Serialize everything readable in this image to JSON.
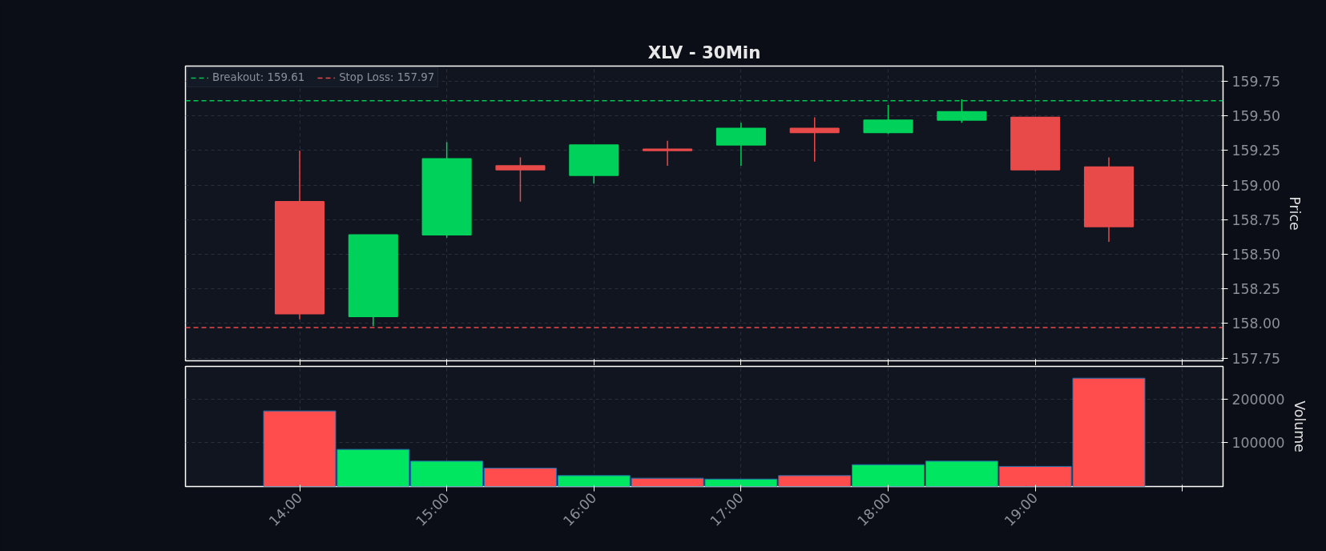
{
  "chart_data": [
    {
      "type": "candlestick",
      "title": "XLV - 30Min",
      "ylabel": "Price",
      "x": [
        14,
        14.5,
        15,
        15.5,
        16,
        16.5,
        17,
        17.5,
        18,
        18.5,
        19,
        19.5
      ],
      "ohlc": [
        [
          158.88,
          159.25,
          158.03,
          158.07
        ],
        [
          158.05,
          158.64,
          157.98,
          158.64
        ],
        [
          158.64,
          159.31,
          158.62,
          159.19
        ],
        [
          159.14,
          159.2,
          158.88,
          159.11
        ],
        [
          159.07,
          159.29,
          159.01,
          159.29
        ],
        [
          159.26,
          159.32,
          159.14,
          159.25
        ],
        [
          159.29,
          159.45,
          159.14,
          159.41
        ],
        [
          159.41,
          159.49,
          159.17,
          159.38
        ],
        [
          159.38,
          159.58,
          159.37,
          159.47
        ],
        [
          159.47,
          159.62,
          159.45,
          159.53
        ],
        [
          159.49,
          159.49,
          159.1,
          159.11
        ],
        [
          159.13,
          159.2,
          158.59,
          158.7
        ]
      ],
      "colors": [
        "#e84a4a",
        "#00d15a",
        "#00d15a",
        "#e84a4a",
        "#00d15a",
        "#e84a4a",
        "#00d15a",
        "#e84a4a",
        "#00d15a",
        "#00d15a",
        "#e84a4a",
        "#e84a4a"
      ],
      "xlim": [
        13.224,
        20.276
      ],
      "xticks": [
        14,
        15,
        16,
        17,
        18,
        19,
        20
      ],
      "ylim": [
        157.73,
        159.86
      ],
      "yticks": [
        157.75,
        {
          "value": 158,
          "label": "158.00"
        },
        158.25,
        {
          "value": 158.5,
          "label": "158.50"
        },
        158.75,
        {
          "value": 159,
          "label": "159.00"
        },
        159.25,
        {
          "value": 159.5,
          "label": "159.50"
        },
        159.75
      ],
      "ref_lines": [
        {
          "axis": "y",
          "value": 159.61,
          "label": "Breakout: 159.61",
          "color": "#00c853",
          "line_style": "dashed"
        },
        {
          "axis": "y",
          "value": 157.97,
          "label": "Stop Loss: 157.97",
          "color": "#e84a4a",
          "line_style": "dashed"
        }
      ],
      "legend": "top left",
      "grid": true,
      "tick_labels": "y"
    },
    {
      "type": "bar",
      "ylabel": "Volume",
      "x": [
        14,
        14.5,
        15,
        15.5,
        16,
        16.5,
        17,
        17.5,
        18,
        18.5,
        19,
        19.5
      ],
      "values": [
        173000,
        85000,
        58000,
        42000,
        25000,
        19000,
        17000,
        25000,
        50000,
        58000,
        46000,
        248000
      ],
      "colors": [
        "#ff4d4d",
        "#00e660",
        "#00e660",
        "#ff4d4d",
        "#00e660",
        "#ff4d4d",
        "#00e660",
        "#ff4d4d",
        "#00e660",
        "#00e660",
        "#ff4d4d",
        "#ff4d4d"
      ],
      "xlim": [
        13.224,
        20.276
      ],
      "xticks": [
        {
          "value": 14,
          "label": "14:00"
        },
        {
          "value": 15,
          "label": "15:00"
        },
        {
          "value": 16,
          "label": "16:00"
        },
        {
          "value": 17,
          "label": "17:00"
        },
        {
          "value": 18,
          "label": "18:00"
        },
        {
          "value": 19,
          "label": "19:00"
        },
        {
          "value": 20,
          "label": null
        }
      ],
      "ylim": [
        0,
        275000
      ],
      "yticks": [
        100000,
        200000
      ],
      "grid": true
    }
  ]
}
